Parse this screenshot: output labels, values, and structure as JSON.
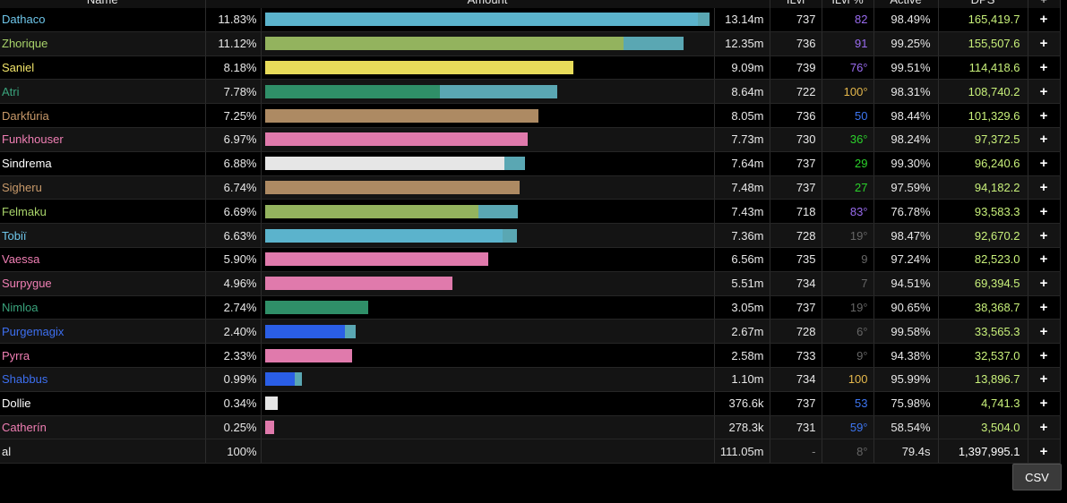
{
  "headers": {
    "name": "Name",
    "amount": "Amount",
    "ilvl": "ILvl",
    "ilvl_pct": "ILvl %",
    "active": "Active",
    "dps": "DPS",
    "plus": "+"
  },
  "rows": [
    {
      "name": "Dathaco",
      "name_color": "#6ec6ea",
      "pct": "11.83%",
      "bar": [
        {
          "w": 97.2,
          "c": "#5bb3cc"
        },
        {
          "w": 2.8,
          "c": "#5aa7b3"
        }
      ],
      "amount": "13.14m",
      "ilvl": "737",
      "ilvl_pct": "82",
      "ilvl_pct_color": "#9a6cf0",
      "active": "98.49%",
      "dps": "165,419.7"
    },
    {
      "name": "Zhorique",
      "name_color": "#a8d36a",
      "pct": "11.12%",
      "bar": [
        {
          "w": 80.5,
          "c": "#93b35e"
        },
        {
          "w": 13.6,
          "c": "#5aa7b3"
        }
      ],
      "amount": "12.35m",
      "ilvl": "736",
      "ilvl_pct": "91",
      "ilvl_pct_color": "#9a6cf0",
      "active": "99.25%",
      "dps": "155,507.6"
    },
    {
      "name": "Saniel",
      "name_color": "#f2e56a",
      "pct": "8.18%",
      "bar": [
        {
          "w": 69.3,
          "c": "#e8dc5a"
        }
      ],
      "amount": "9.09m",
      "ilvl": "739",
      "ilvl_pct": "76°",
      "ilvl_pct_color": "#9a6cf0",
      "active": "99.51%",
      "dps": "114,418.6"
    },
    {
      "name": "Atri",
      "name_color": "#3aa37c",
      "pct": "7.78%",
      "bar": [
        {
          "w": 39.3,
          "c": "#2f8f68"
        },
        {
          "w": 26.4,
          "c": "#5aa7b3"
        }
      ],
      "amount": "8.64m",
      "ilvl": "722",
      "ilvl_pct": "100°",
      "ilvl_pct_color": "#e5b84c",
      "active": "98.31%",
      "dps": "108,740.2"
    },
    {
      "name": "Darkfúria",
      "name_color": "#c99a6a",
      "pct": "7.25%",
      "bar": [
        {
          "w": 61.4,
          "c": "#ad8a63"
        }
      ],
      "amount": "8.05m",
      "ilvl": "736",
      "ilvl_pct": "50",
      "ilvl_pct_color": "#3d76f2",
      "active": "98.44%",
      "dps": "101,329.6"
    },
    {
      "name": "Funkhouser",
      "name_color": "#f07fb4",
      "pct": "6.97%",
      "bar": [
        {
          "w": 59.0,
          "c": "#e07aac"
        }
      ],
      "amount": "7.73m",
      "ilvl": "730",
      "ilvl_pct": "36°",
      "ilvl_pct_color": "#2bd12b",
      "active": "98.24%",
      "dps": "97,372.5"
    },
    {
      "name": "Sindrema",
      "name_color": "#ffffff",
      "pct": "6.88%",
      "bar": [
        {
          "w": 53.8,
          "c": "#e6e6e6"
        },
        {
          "w": 4.6,
          "c": "#5aa7b3"
        }
      ],
      "amount": "7.64m",
      "ilvl": "737",
      "ilvl_pct": "29",
      "ilvl_pct_color": "#2bd12b",
      "active": "99.30%",
      "dps": "96,240.6"
    },
    {
      "name": "Sigheru",
      "name_color": "#c99a6a",
      "pct": "6.74%",
      "bar": [
        {
          "w": 57.2,
          "c": "#ad8a63"
        }
      ],
      "amount": "7.48m",
      "ilvl": "737",
      "ilvl_pct": "27",
      "ilvl_pct_color": "#2bd12b",
      "active": "97.59%",
      "dps": "94,182.2"
    },
    {
      "name": "Felmaku",
      "name_color": "#a8d36a",
      "pct": "6.69%",
      "bar": [
        {
          "w": 47.9,
          "c": "#93b35e"
        },
        {
          "w": 9.0,
          "c": "#5aa7b3"
        }
      ],
      "amount": "7.43m",
      "ilvl": "718",
      "ilvl_pct": "83°",
      "ilvl_pct_color": "#9a6cf0",
      "active": "76.78%",
      "dps": "93,583.3"
    },
    {
      "name": "Tobiï",
      "name_color": "#6ec6ea",
      "pct": "6.63%",
      "bar": [
        {
          "w": 53.4,
          "c": "#5bb3cc"
        },
        {
          "w": 3.2,
          "c": "#5aa7b3"
        }
      ],
      "amount": "7.36m",
      "ilvl": "728",
      "ilvl_pct": "19°",
      "ilvl_pct_color": "#666666",
      "active": "98.47%",
      "dps": "92,670.2"
    },
    {
      "name": "Vaessa",
      "name_color": "#f07fb4",
      "pct": "5.90%",
      "bar": [
        {
          "w": 50.2,
          "c": "#e07aac"
        }
      ],
      "amount": "6.56m",
      "ilvl": "735",
      "ilvl_pct": "9",
      "ilvl_pct_color": "#666666",
      "active": "97.24%",
      "dps": "82,523.0"
    },
    {
      "name": "Surpygue",
      "name_color": "#f07fb4",
      "pct": "4.96%",
      "bar": [
        {
          "w": 42.1,
          "c": "#e07aac"
        }
      ],
      "amount": "5.51m",
      "ilvl": "734",
      "ilvl_pct": "7",
      "ilvl_pct_color": "#666666",
      "active": "94.51%",
      "dps": "69,394.5"
    },
    {
      "name": "Nimloa",
      "name_color": "#3aa37c",
      "pct": "2.74%",
      "bar": [
        {
          "w": 23.3,
          "c": "#2f8f68"
        }
      ],
      "amount": "3.05m",
      "ilvl": "737",
      "ilvl_pct": "19°",
      "ilvl_pct_color": "#666666",
      "active": "90.65%",
      "dps": "38,368.7"
    },
    {
      "name": "Purgemagix",
      "name_color": "#3d6ff0",
      "pct": "2.40%",
      "bar": [
        {
          "w": 18.0,
          "c": "#2a5ee6"
        },
        {
          "w": 2.4,
          "c": "#5aa7b3"
        }
      ],
      "amount": "2.67m",
      "ilvl": "728",
      "ilvl_pct": "6°",
      "ilvl_pct_color": "#666666",
      "active": "99.58%",
      "dps": "33,565.3"
    },
    {
      "name": "Pyrra",
      "name_color": "#f07fb4",
      "pct": "2.33%",
      "bar": [
        {
          "w": 19.7,
          "c": "#e07aac"
        }
      ],
      "amount": "2.58m",
      "ilvl": "733",
      "ilvl_pct": "9°",
      "ilvl_pct_color": "#666666",
      "active": "94.38%",
      "dps": "32,537.0"
    },
    {
      "name": "Shabbus",
      "name_color": "#3d6ff0",
      "pct": "0.99%",
      "bar": [
        {
          "w": 6.8,
          "c": "#2a5ee6"
        },
        {
          "w": 1.6,
          "c": "#5aa7b3"
        }
      ],
      "amount": "1.10m",
      "ilvl": "734",
      "ilvl_pct": "100",
      "ilvl_pct_color": "#e5b84c",
      "active": "95.99%",
      "dps": "13,896.7"
    },
    {
      "name": "Dollie",
      "name_color": "#ffffff",
      "pct": "0.34%",
      "bar": [
        {
          "w": 2.9,
          "c": "#e6e6e6"
        }
      ],
      "amount": "376.6k",
      "ilvl": "737",
      "ilvl_pct": "53",
      "ilvl_pct_color": "#3d76f2",
      "active": "75.98%",
      "dps": "4,741.3"
    },
    {
      "name": "Catherín",
      "name_color": "#f07fb4",
      "pct": "0.25%",
      "bar": [
        {
          "w": 2.1,
          "c": "#e07aac"
        }
      ],
      "amount": "278.3k",
      "ilvl": "731",
      "ilvl_pct": "59°",
      "ilvl_pct_color": "#3d76f2",
      "active": "58.54%",
      "dps": "3,504.0"
    }
  ],
  "total": {
    "name": "al",
    "pct": "100%",
    "amount": "111.05m",
    "ilvl": "-",
    "ilvl_pct": "8°",
    "active": "79.4s",
    "dps": "1,397,995.1"
  },
  "csv_button": "CSV"
}
